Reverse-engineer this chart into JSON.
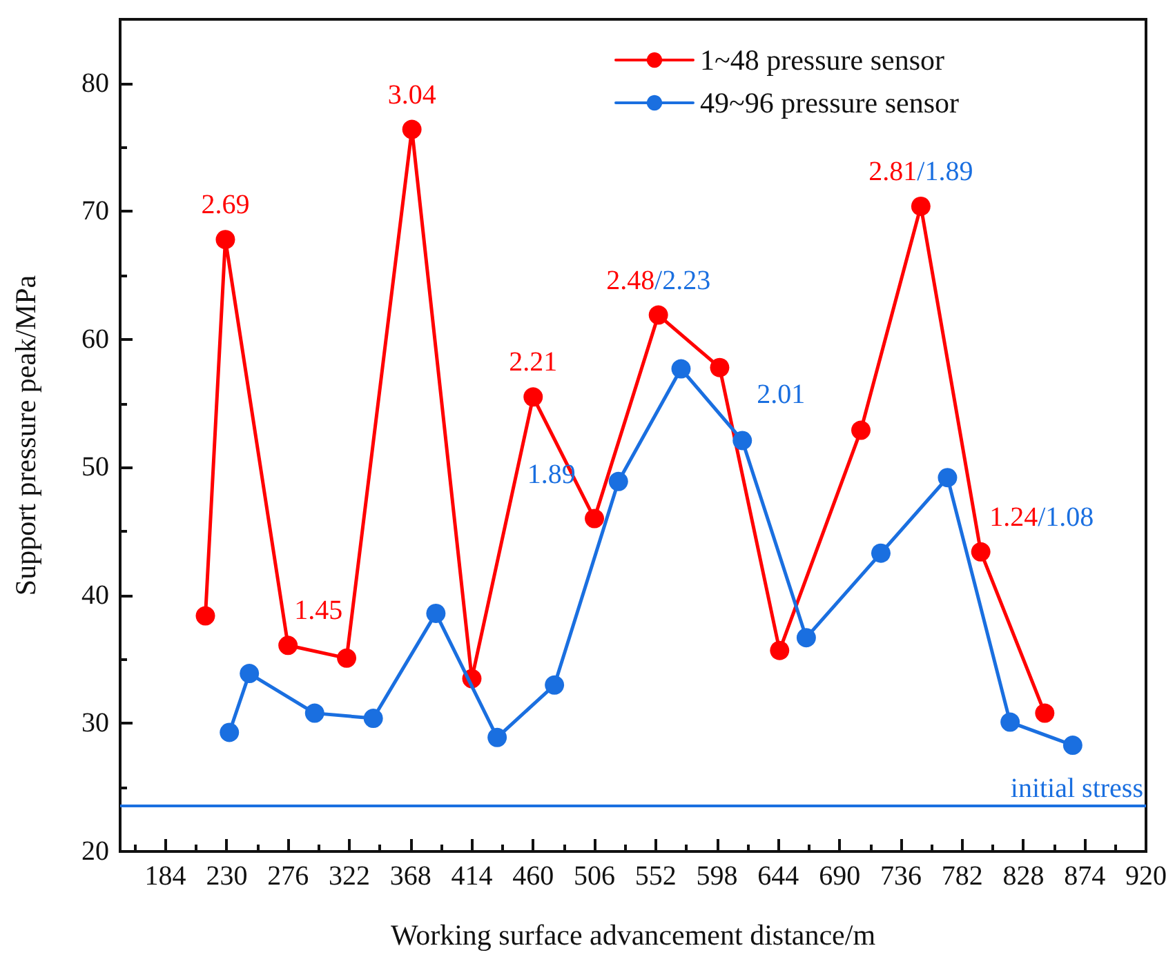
{
  "chart_data": {
    "type": "line",
    "xlabel": "Working surface advancement distance/m",
    "ylabel": "Support pressure peak/MPa",
    "xlim": [
      150,
      920
    ],
    "ylim": [
      20,
      85
    ],
    "xticks": [
      {
        "value": 161,
        "label": null
      },
      184,
      {
        "value": 207,
        "label": null
      },
      230,
      {
        "value": 253,
        "label": null
      },
      276,
      {
        "value": 299,
        "label": null
      },
      322,
      {
        "value": 345,
        "label": null
      },
      368,
      {
        "value": 391,
        "label": null
      },
      414,
      {
        "value": 437,
        "label": null
      },
      460,
      {
        "value": 483,
        "label": null
      },
      506,
      {
        "value": 529,
        "label": null
      },
      552,
      {
        "value": 575,
        "label": null
      },
      598,
      {
        "value": 621,
        "label": null
      },
      644,
      {
        "value": 667,
        "label": null
      },
      690,
      {
        "value": 713,
        "label": null
      },
      736,
      {
        "value": 759,
        "label": null
      },
      782,
      {
        "value": 805,
        "label": null
      },
      828,
      {
        "value": 851,
        "label": null
      },
      874,
      {
        "value": 897,
        "label": null
      },
      920
    ],
    "yticks": [
      20,
      {
        "value": 25,
        "label": null
      },
      30,
      {
        "value": 35,
        "label": null
      },
      40,
      {
        "value": 45,
        "label": null
      },
      50,
      {
        "value": 55,
        "label": null
      },
      60,
      {
        "value": 65,
        "label": null
      },
      70,
      {
        "value": 75,
        "label": null
      },
      80
    ],
    "series": [
      {
        "name": "1~48 pressure sensor",
        "color": "#ff0000",
        "x": [
          214,
          229,
          276,
          320,
          369,
          414,
          460,
          506,
          554,
          600,
          645,
          706,
          751,
          796,
          844
        ],
        "values": [
          38.4,
          67.8,
          36.1,
          35.1,
          76.4,
          33.5,
          55.5,
          46.0,
          61.9,
          57.8,
          35.7,
          52.9,
          70.4,
          43.4,
          30.8
        ]
      },
      {
        "name": "49~96 pressure sensor",
        "color": "#1a6fe0",
        "x": [
          232,
          247,
          296,
          340,
          387,
          433,
          476,
          524,
          571,
          617,
          665,
          721,
          771,
          818,
          865
        ],
        "values": [
          29.3,
          33.9,
          30.8,
          30.4,
          38.6,
          28.9,
          33.0,
          48.9,
          57.7,
          52.1,
          36.7,
          43.3,
          49.2,
          30.1,
          28.3
        ]
      }
    ],
    "annotations": [
      {
        "text": "2.69",
        "x": 229,
        "y": 67.8
      },
      {
        "text": "1.45",
        "x": 276,
        "y": 36.1
      },
      {
        "text": "3.04",
        "x": 369,
        "y": 76.4
      },
      {
        "text": "2.21",
        "x": 460,
        "y": 55.5
      },
      {
        "text": "2.48",
        "x": 554,
        "y": 61.9
      },
      {
        "text": "/2.23",
        "x": 554,
        "y": 61.9
      },
      {
        "text": "1.89",
        "x": 524,
        "y": 48.9
      },
      {
        "text": "2.01",
        "x": 617,
        "y": 52.1
      },
      {
        "text": "2.81",
        "x": 751,
        "y": 70.4
      },
      {
        "text": "/1.89",
        "x": 751,
        "y": 70.4
      },
      {
        "text": "1.24",
        "x": 796,
        "y": 43.4
      },
      {
        "text": "/1.08",
        "x": 796,
        "y": 43.4
      }
    ],
    "ref_lines": [
      {
        "axis": "y",
        "value": 23.6,
        "label": "initial stress",
        "color": "#1a6fe0"
      }
    ],
    "legend": "top right",
    "marker": "circle",
    "line_style": "solid",
    "grid": false
  }
}
